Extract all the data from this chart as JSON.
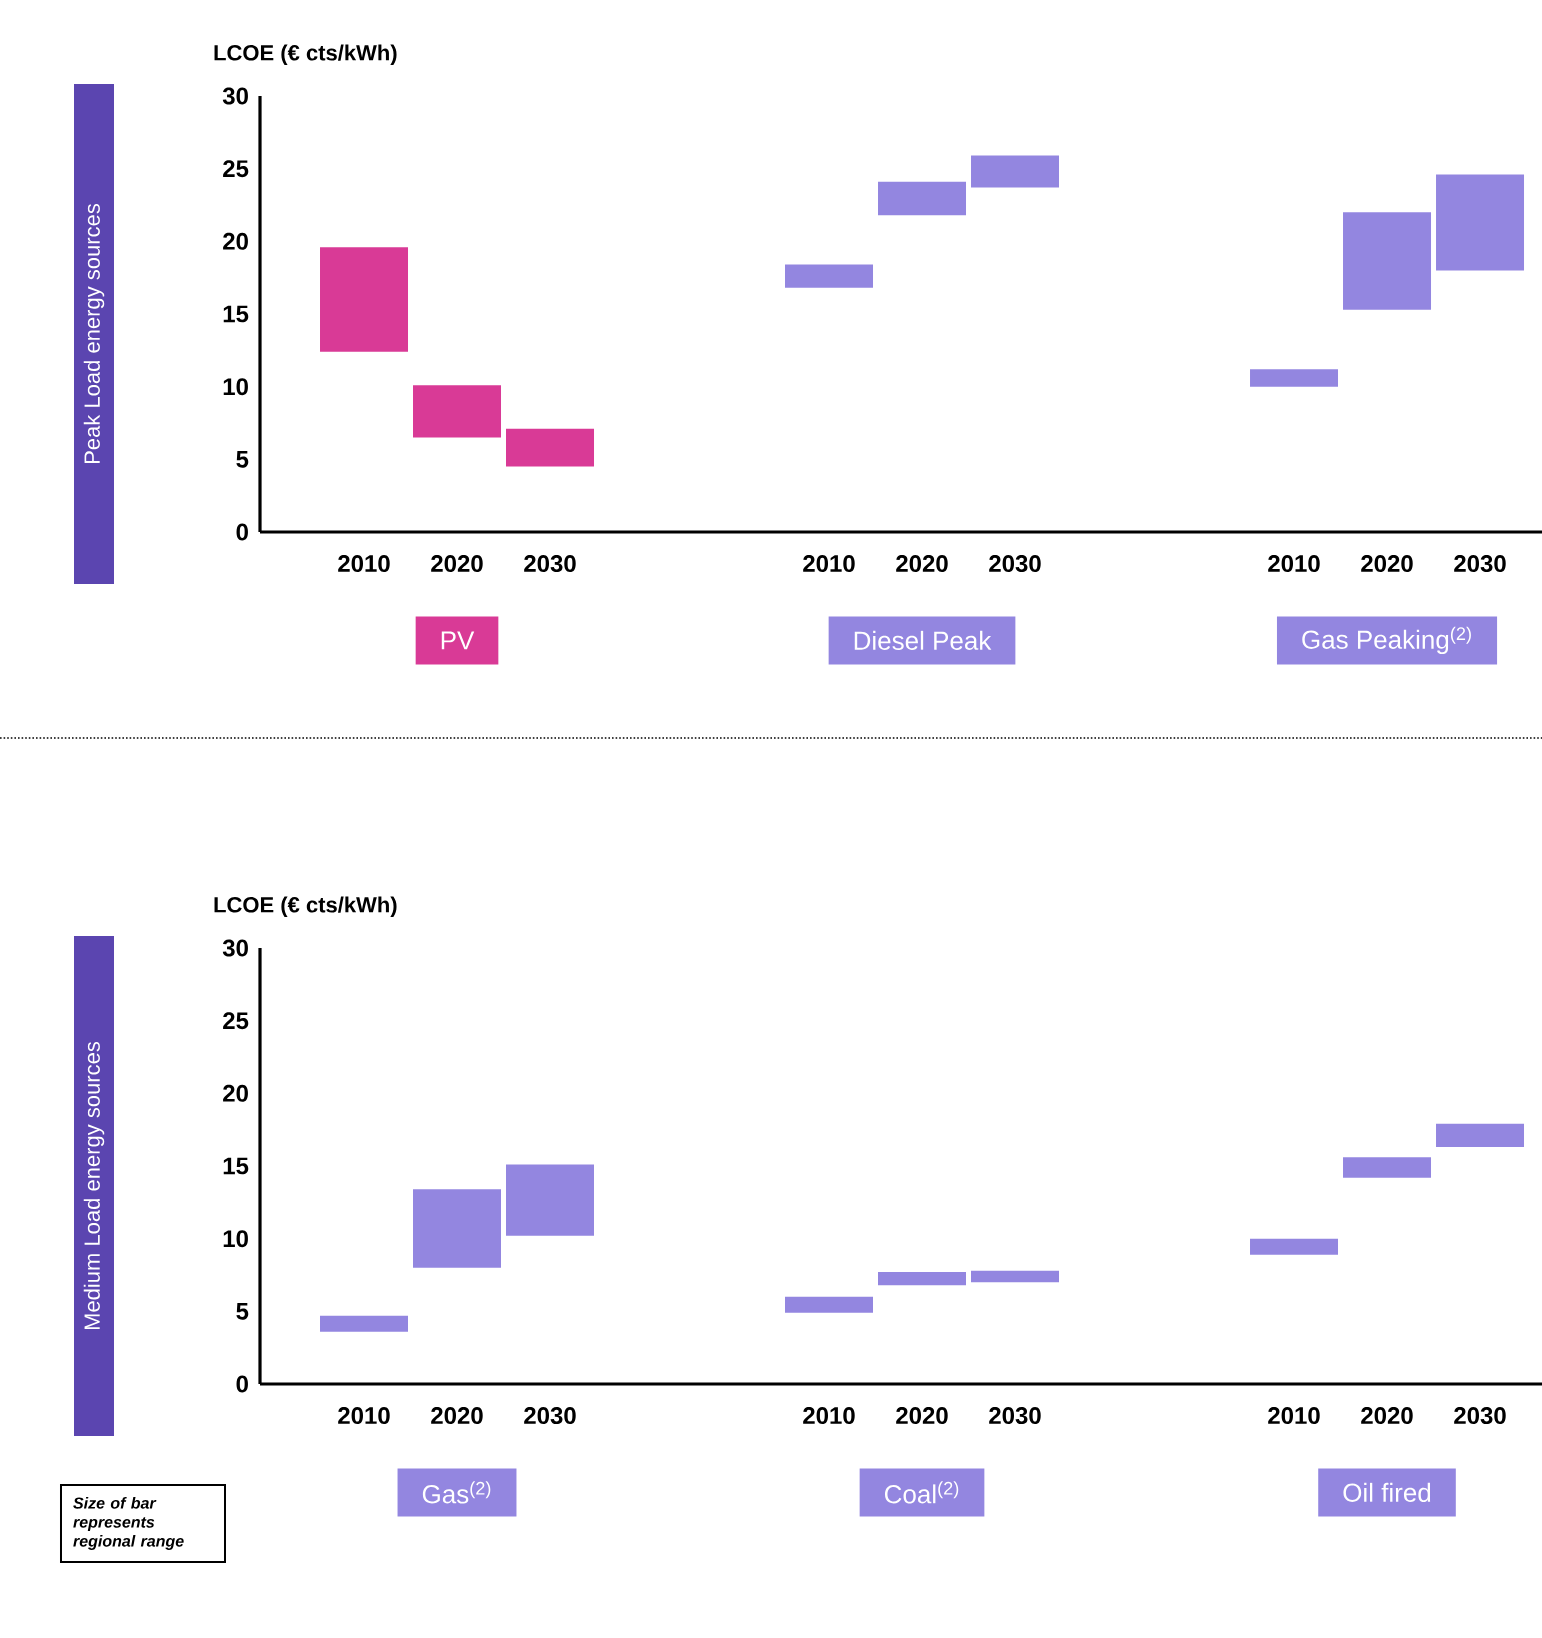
{
  "chart_data": [
    {
      "type": "bar",
      "title": "Peak Load energy sources",
      "ylabel": "LCOE (€ cts/kWh)",
      "categories": [
        "2010",
        "2020",
        "2030",
        null,
        null,
        "2010",
        "2020",
        "2030",
        null,
        null,
        "2010",
        "2020",
        "2030"
      ],
      "base": [
        12.4,
        6.5,
        4.5,
        null,
        null,
        16.8,
        21.8,
        23.7,
        null,
        null,
        10.0,
        15.3,
        18.0
      ],
      "values": [
        7.2,
        3.6,
        2.6,
        null,
        null,
        1.6,
        2.3,
        2.2,
        null,
        null,
        1.2,
        6.7,
        6.6
      ],
      "colors": [
        "#d93a96",
        "#d93a96",
        "#d93a96",
        null,
        null,
        "#9386e0",
        "#9386e0",
        "#9386e0",
        null,
        null,
        "#9386e0",
        "#9386e0",
        "#9386e0"
      ],
      "ylim": [
        0,
        30
      ],
      "yticks": [
        0,
        5,
        10,
        15,
        20,
        25,
        30
      ],
      "annotations": [
        "PV",
        "Diesel Peak",
        "Gas Peaking$^{(2)}$"
      ]
    },
    {
      "type": "bar",
      "title": "Medium Load energy sources",
      "ylabel": "LCOE (€ cts/kWh)",
      "categories": [
        "2010",
        "2020",
        "2030",
        null,
        null,
        "2010",
        "2020",
        "2030",
        null,
        null,
        "2010",
        "2020",
        "2030"
      ],
      "base": [
        3.6,
        8.0,
        10.2,
        null,
        null,
        4.9,
        6.8,
        7.0,
        null,
        null,
        8.9,
        14.2,
        16.3
      ],
      "values": [
        1.1,
        5.4,
        4.9,
        null,
        null,
        1.1,
        0.9,
        0.8,
        null,
        null,
        1.1,
        1.4,
        1.6
      ],
      "colors": [
        "#9386e0",
        "#9386e0",
        "#9386e0",
        null,
        null,
        "#9386e0",
        "#9386e0",
        "#9386e0",
        null,
        null,
        "#9386e0",
        "#9386e0",
        "#9386e0"
      ],
      "ylim": [
        0,
        30
      ],
      "yticks": [
        0,
        5,
        10,
        15,
        20,
        25,
        30
      ],
      "annotations": [
        "Gas$^{(2)}$",
        "Coal$^{(2)}$",
        "Oil fired",
        "Size of bar represents regional range"
      ]
    }
  ]
}
